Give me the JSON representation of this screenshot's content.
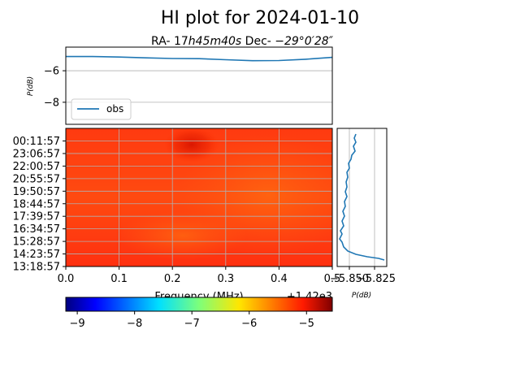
{
  "title": "HI plot for 2024-01-10",
  "subtitle_prefix": "RA- 17",
  "subtitle_ra": "h45m40s",
  "subtitle_mid": " Dec- ",
  "subtitle_dec": "−29°0′28″",
  "colors": {
    "line": "#1f77b4",
    "grid": "#b0b0b0"
  },
  "chart_data": [
    {
      "type": "line",
      "panel": "top-spectrum",
      "ylabel": "P(dB)",
      "ylim": [
        -9.4,
        -4.5
      ],
      "yticks": [
        -6,
        -8
      ],
      "ytick_labels": [
        "−6",
        "−8"
      ],
      "xlim": [
        0.0,
        0.5
      ],
      "grid": true,
      "legend": {
        "label": "obs",
        "placement": "lower-left"
      },
      "series": [
        {
          "name": "obs",
          "x": [
            0.0,
            0.05,
            0.1,
            0.15,
            0.2,
            0.25,
            0.3,
            0.35,
            0.4,
            0.45,
            0.5
          ],
          "values": [
            -5.1,
            -5.1,
            -5.13,
            -5.18,
            -5.22,
            -5.23,
            -5.3,
            -5.36,
            -5.35,
            -5.27,
            -5.15
          ]
        }
      ]
    },
    {
      "type": "heatmap",
      "panel": "waterfall",
      "xlabel": "Frequency (MHz)",
      "x_offset_label": "+1.42e3",
      "xlim": [
        0.0,
        0.5
      ],
      "xticks": [
        0.0,
        0.1,
        0.2,
        0.3,
        0.4,
        0.5
      ],
      "xtick_labels": [
        "0.0",
        "0.1",
        "0.2",
        "0.3",
        "0.4",
        "0.5"
      ],
      "time_labels": [
        "00:11:57",
        "23:06:57",
        "22:00:57",
        "20:55:57",
        "19:50:57",
        "18:44:57",
        "17:39:57",
        "16:34:57",
        "15:28:57",
        "14:23:57",
        "13:18:57"
      ],
      "grid": true,
      "colorbar": {
        "ticks": [
          -9,
          -8,
          -7,
          -6,
          -5
        ],
        "tick_labels": [
          "−9",
          "−8",
          "−7",
          "−6",
          "−5"
        ],
        "range": [
          -9.2,
          -4.55
        ]
      }
    },
    {
      "type": "line",
      "panel": "side-profile",
      "xlabel": "P(dB)",
      "xtick_labels": [
        "−5.850",
        "−5.825"
      ],
      "grid": true
    }
  ]
}
